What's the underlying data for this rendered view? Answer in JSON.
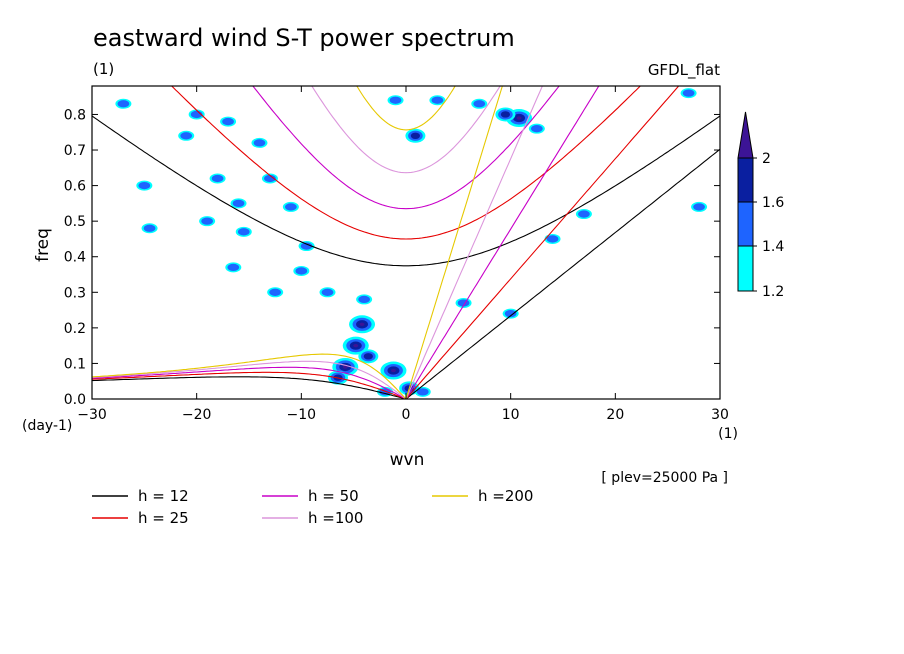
{
  "chart_data": {
    "type": "contour",
    "title": "eastward wind S-T power spectrum",
    "subtitle_left": "(1)",
    "subtitle_right": "GFDL_flat",
    "xlabel": "wvn",
    "ylabel": "freq",
    "xunit": "(1)",
    "yunit": "(day-1)",
    "annotation": "[ plev=25000 Pa ]",
    "xlim": [
      -30,
      30
    ],
    "ylim": [
      0,
      0.88
    ],
    "xticks": [
      "-30",
      "-20",
      "-10",
      "0",
      "10",
      "20",
      "30"
    ],
    "xtick_values": [
      -30,
      -20,
      -10,
      0,
      10,
      20,
      30
    ],
    "yticks": [
      "0.0",
      "0.1",
      "0.2",
      "0.3",
      "0.4",
      "0.5",
      "0.6",
      "0.7",
      "0.8"
    ],
    "ytick_values": [
      0,
      0.1,
      0.2,
      0.3,
      0.4,
      0.5,
      0.6,
      0.7,
      0.8
    ],
    "colorbar": {
      "labels": [
        "1.2",
        "1.4",
        "1.6",
        "2"
      ],
      "levels": [
        1.2,
        1.4,
        1.6,
        2
      ],
      "colors": [
        "#00ffff",
        "#1e64ff",
        "#0a1fa0",
        "#3c1496"
      ]
    },
    "series": [
      {
        "name": "h = 12",
        "h": 12,
        "color": "#000000"
      },
      {
        "name": "h = 25",
        "h": 25,
        "color": "#e60000"
      },
      {
        "name": "h = 50",
        "h": 50,
        "color": "#c800c8"
      },
      {
        "name": "h =100",
        "h": 100,
        "color": "#dc96dc"
      },
      {
        "name": "h =200",
        "h": 200,
        "color": "#e6c800"
      }
    ],
    "blobs": [
      {
        "wvn": -4.2,
        "freq": 0.21,
        "level": 3
      },
      {
        "wvn": -4.8,
        "freq": 0.15,
        "level": 3
      },
      {
        "wvn": -5.8,
        "freq": 0.09,
        "level": 3
      },
      {
        "wvn": -3.6,
        "freq": 0.12,
        "level": 2
      },
      {
        "wvn": -6.5,
        "freq": 0.06,
        "level": 2
      },
      {
        "wvn": -1.2,
        "freq": 0.08,
        "level": 3
      },
      {
        "wvn": 0.3,
        "freq": 0.03,
        "level": 2
      },
      {
        "wvn": 1.6,
        "freq": 0.02,
        "level": 1
      },
      {
        "wvn": -2.0,
        "freq": 0.02,
        "level": 1
      },
      {
        "wvn": 10.8,
        "freq": 0.79,
        "level": 3
      },
      {
        "wvn": 9.5,
        "freq": 0.8,
        "level": 2
      },
      {
        "wvn": 7.0,
        "freq": 0.83,
        "level": 1
      },
      {
        "wvn": 0.9,
        "freq": 0.74,
        "level": 2
      },
      {
        "wvn": 12.5,
        "freq": 0.76,
        "level": 1
      },
      {
        "wvn": -27.0,
        "freq": 0.83,
        "level": 1
      },
      {
        "wvn": -20.0,
        "freq": 0.8,
        "level": 1
      },
      {
        "wvn": -21.0,
        "freq": 0.74,
        "level": 1
      },
      {
        "wvn": -17.0,
        "freq": 0.78,
        "level": 1
      },
      {
        "wvn": -14.0,
        "freq": 0.72,
        "level": 1
      },
      {
        "wvn": -18.0,
        "freq": 0.62,
        "level": 1
      },
      {
        "wvn": -16.0,
        "freq": 0.55,
        "level": 1
      },
      {
        "wvn": -13.0,
        "freq": 0.62,
        "level": 1
      },
      {
        "wvn": -15.5,
        "freq": 0.47,
        "level": 1
      },
      {
        "wvn": -19.0,
        "freq": 0.5,
        "level": 1
      },
      {
        "wvn": -11.0,
        "freq": 0.54,
        "level": 1
      },
      {
        "wvn": -24.5,
        "freq": 0.48,
        "level": 1
      },
      {
        "wvn": -16.5,
        "freq": 0.37,
        "level": 1
      },
      {
        "wvn": -25.0,
        "freq": 0.6,
        "level": 1
      },
      {
        "wvn": -9.5,
        "freq": 0.43,
        "level": 1
      },
      {
        "wvn": -10.0,
        "freq": 0.36,
        "level": 1
      },
      {
        "wvn": -7.5,
        "freq": 0.3,
        "level": 1
      },
      {
        "wvn": -4.0,
        "freq": 0.28,
        "level": 1
      },
      {
        "wvn": -12.5,
        "freq": 0.3,
        "level": 1
      },
      {
        "wvn": 5.5,
        "freq": 0.27,
        "level": 1
      },
      {
        "wvn": 10.0,
        "freq": 0.24,
        "level": 1
      },
      {
        "wvn": 3.0,
        "freq": 0.84,
        "level": 1
      },
      {
        "wvn": -1.0,
        "freq": 0.84,
        "level": 1
      },
      {
        "wvn": 14.0,
        "freq": 0.45,
        "level": 1
      },
      {
        "wvn": 17.0,
        "freq": 0.52,
        "level": 1
      },
      {
        "wvn": 28.0,
        "freq": 0.54,
        "level": 1
      },
      {
        "wvn": 27.0,
        "freq": 0.86,
        "level": 1
      }
    ]
  }
}
